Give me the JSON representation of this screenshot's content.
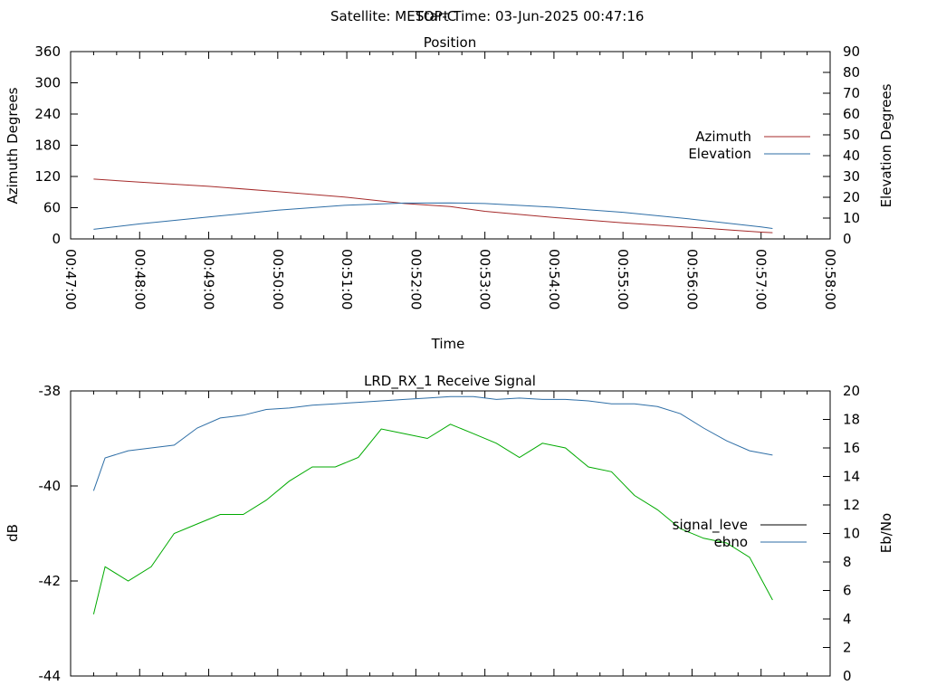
{
  "header": {
    "satellite": "Satellite: METOP-C",
    "start_time": "Start Time: 03-Jun-2025 00:47:16"
  },
  "chart_data": [
    {
      "type": "line",
      "title": "Position",
      "xlabel": "Time",
      "ylabel": "Azimuth Degrees",
      "y2label": "Elevation Degrees",
      "xlim": [
        "00:47:00",
        "00:58:00"
      ],
      "x_ticks": [
        "00:47:00",
        "00:48:00",
        "00:49:00",
        "00:50:00",
        "00:51:00",
        "00:52:00",
        "00:53:00",
        "00:54:00",
        "00:55:00",
        "00:56:00",
        "00:57:00",
        "00:58:00"
      ],
      "ylim": [
        0,
        360
      ],
      "y_ticks": [
        0,
        60,
        120,
        180,
        240,
        300,
        360
      ],
      "y2lim": [
        0,
        90
      ],
      "y2_ticks": [
        0,
        10,
        20,
        30,
        40,
        50,
        60,
        70,
        80,
        90
      ],
      "legend_position": "right",
      "series": [
        {
          "name": "Azimuth",
          "axis": "left",
          "color": "#a52a2a",
          "x": [
            "00:47:20",
            "00:48:00",
            "00:49:00",
            "00:50:00",
            "00:51:00",
            "00:51:50",
            "00:52:30",
            "00:53:00",
            "00:54:00",
            "00:55:00",
            "00:56:00",
            "00:57:00",
            "00:57:10"
          ],
          "values": [
            115,
            109,
            101,
            91,
            80,
            68,
            62,
            53,
            41,
            31,
            22,
            13,
            12
          ]
        },
        {
          "name": "Elevation",
          "axis": "right",
          "color": "#2e6ea6",
          "x": [
            "00:47:20",
            "00:48:00",
            "00:49:00",
            "00:50:00",
            "00:51:00",
            "00:51:50",
            "00:52:30",
            "00:53:00",
            "00:54:00",
            "00:55:00",
            "00:56:00",
            "00:57:00",
            "00:57:10"
          ],
          "values": [
            4.6,
            7.2,
            10.5,
            13.8,
            16.2,
            17.2,
            17.3,
            17.0,
            15.2,
            12.8,
            9.5,
            5.8,
            5.0
          ]
        }
      ]
    },
    {
      "type": "line",
      "title": "LRD_RX_1 Receive Signal",
      "xlabel": "",
      "ylabel": "dB",
      "y2label": "Eb/No",
      "xlim": [
        "00:47:00",
        "00:58:00"
      ],
      "ylim": [
        -44,
        -38
      ],
      "y_ticks": [
        -44,
        -42,
        -40,
        -38
      ],
      "y2lim": [
        0,
        20
      ],
      "y2_ticks": [
        0,
        2,
        4,
        6,
        8,
        10,
        12,
        14,
        16,
        18,
        20
      ],
      "legend_position": "right",
      "series": [
        {
          "name": "signal_leve",
          "axis": "left",
          "color": "#00aa00",
          "legend_color": "#000000",
          "x": [
            "00:47:20",
            "00:47:30",
            "00:47:50",
            "00:48:10",
            "00:48:30",
            "00:48:50",
            "00:49:10",
            "00:49:30",
            "00:49:50",
            "00:50:10",
            "00:50:30",
            "00:50:50",
            "00:51:10",
            "00:51:30",
            "00:51:50",
            "00:52:10",
            "00:52:30",
            "00:52:50",
            "00:53:10",
            "00:53:30",
            "00:53:50",
            "00:54:10",
            "00:54:30",
            "00:54:50",
            "00:55:10",
            "00:55:30",
            "00:55:50",
            "00:56:10",
            "00:56:30",
            "00:56:50",
            "00:57:10"
          ],
          "values": [
            -42.7,
            -41.7,
            -42.0,
            -41.7,
            -41.0,
            -40.8,
            -40.6,
            -40.6,
            -40.3,
            -39.9,
            -39.6,
            -39.6,
            -39.4,
            -38.8,
            -38.9,
            -39.0,
            -38.7,
            -38.9,
            -39.1,
            -39.4,
            -39.1,
            -39.2,
            -39.6,
            -39.7,
            -40.2,
            -40.5,
            -40.9,
            -41.1,
            -41.2,
            -41.5,
            -42.4
          ]
        },
        {
          "name": "ebno",
          "axis": "right",
          "color": "#2e6ea6",
          "legend_color": "#2e6ea6",
          "x": [
            "00:47:20",
            "00:47:30",
            "00:47:50",
            "00:48:10",
            "00:48:30",
            "00:48:50",
            "00:49:10",
            "00:49:30",
            "00:49:50",
            "00:50:10",
            "00:50:30",
            "00:50:50",
            "00:51:10",
            "00:51:30",
            "00:51:50",
            "00:52:10",
            "00:52:30",
            "00:52:50",
            "00:53:10",
            "00:53:30",
            "00:53:50",
            "00:54:10",
            "00:54:30",
            "00:54:50",
            "00:55:10",
            "00:55:30",
            "00:55:50",
            "00:56:10",
            "00:56:30",
            "00:56:50",
            "00:57:10"
          ],
          "values": [
            13.0,
            15.3,
            15.8,
            16.0,
            16.2,
            17.4,
            18.1,
            18.3,
            18.7,
            18.8,
            19.0,
            19.1,
            19.2,
            19.3,
            19.4,
            19.5,
            19.6,
            19.6,
            19.4,
            19.5,
            19.4,
            19.4,
            19.3,
            19.1,
            19.1,
            18.9,
            18.4,
            17.4,
            16.5,
            15.8,
            15.5
          ]
        }
      ]
    }
  ]
}
